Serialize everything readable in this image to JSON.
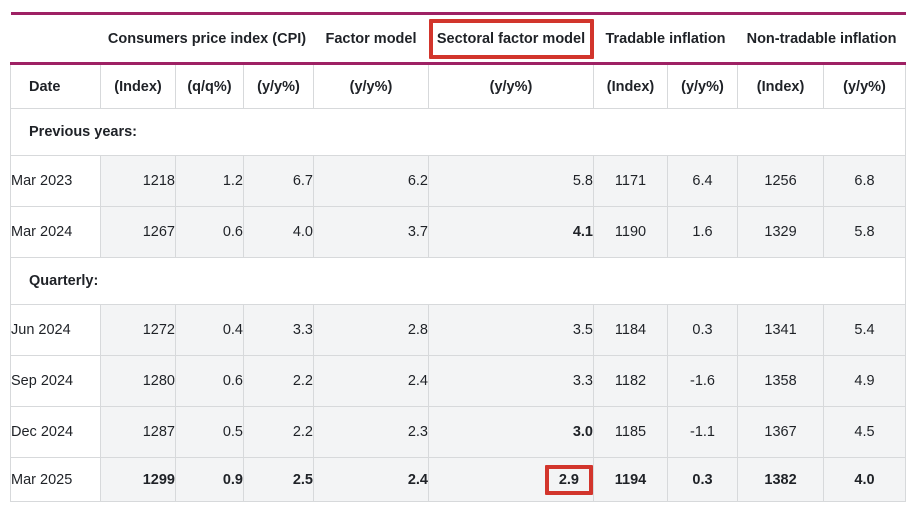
{
  "colors": {
    "rule_magenta": "#9e2164",
    "highlight_red": "#d2352c",
    "value_cell_bg": "#f3f4f5",
    "grid_line": "#d7d9db",
    "text": "#1f2227"
  },
  "chart_data": {
    "type": "table",
    "group_headers": [
      {
        "label": "Consumers price index (CPI)",
        "colspan": 3,
        "highlighted": false
      },
      {
        "label": "Factor model",
        "colspan": 1,
        "highlighted": false
      },
      {
        "label": "Sectoral factor model",
        "colspan": 1,
        "highlighted": true
      },
      {
        "label": "Tradable inflation",
        "colspan": 2,
        "highlighted": false
      },
      {
        "label": "Non-tradable inflation",
        "colspan": 2,
        "highlighted": false
      }
    ],
    "columns": [
      "Date",
      "(Index)",
      "(q/q%)",
      "(y/y%)",
      "(y/y%)",
      "(y/y%)",
      "(Index)",
      "(y/y%)",
      "(Index)",
      "(y/y%)"
    ],
    "sections": [
      {
        "label": "Previous years:",
        "rows": [
          {
            "date": "Mar 2023",
            "values": [
              "1218",
              "1.2",
              "6.7",
              "6.2",
              "5.8",
              "1171",
              "6.4",
              "1256",
              "6.8"
            ],
            "bold_values": [],
            "boxed_values": []
          },
          {
            "date": "Mar 2024",
            "values": [
              "1267",
              "0.6",
              "4.0",
              "3.7",
              "4.1",
              "1190",
              "1.6",
              "1329",
              "5.8"
            ],
            "bold_values": [
              4
            ],
            "boxed_values": []
          }
        ]
      },
      {
        "label": "Quarterly:",
        "rows": [
          {
            "date": "Jun 2024",
            "values": [
              "1272",
              "0.4",
              "3.3",
              "2.8",
              "3.5",
              "1184",
              "0.3",
              "1341",
              "5.4"
            ],
            "bold_values": [],
            "boxed_values": []
          },
          {
            "date": "Sep 2024",
            "values": [
              "1280",
              "0.6",
              "2.2",
              "2.4",
              "3.3",
              "1182",
              "-1.6",
              "1358",
              "4.9"
            ],
            "bold_values": [],
            "boxed_values": []
          },
          {
            "date": "Dec 2024",
            "values": [
              "1287",
              "0.5",
              "2.2",
              "2.3",
              "3.0",
              "1185",
              "-1.1",
              "1367",
              "4.5"
            ],
            "bold_values": [
              4
            ],
            "boxed_values": []
          },
          {
            "date": "Mar 2025",
            "values": [
              "1299",
              "0.9",
              "2.5",
              "2.4",
              "2.9",
              "1194",
              "0.3",
              "1382",
              "4.0"
            ],
            "bold_values": [
              0,
              1,
              2,
              3,
              4,
              5,
              6,
              7,
              8
            ],
            "boxed_values": [
              4
            ]
          }
        ]
      }
    ]
  }
}
